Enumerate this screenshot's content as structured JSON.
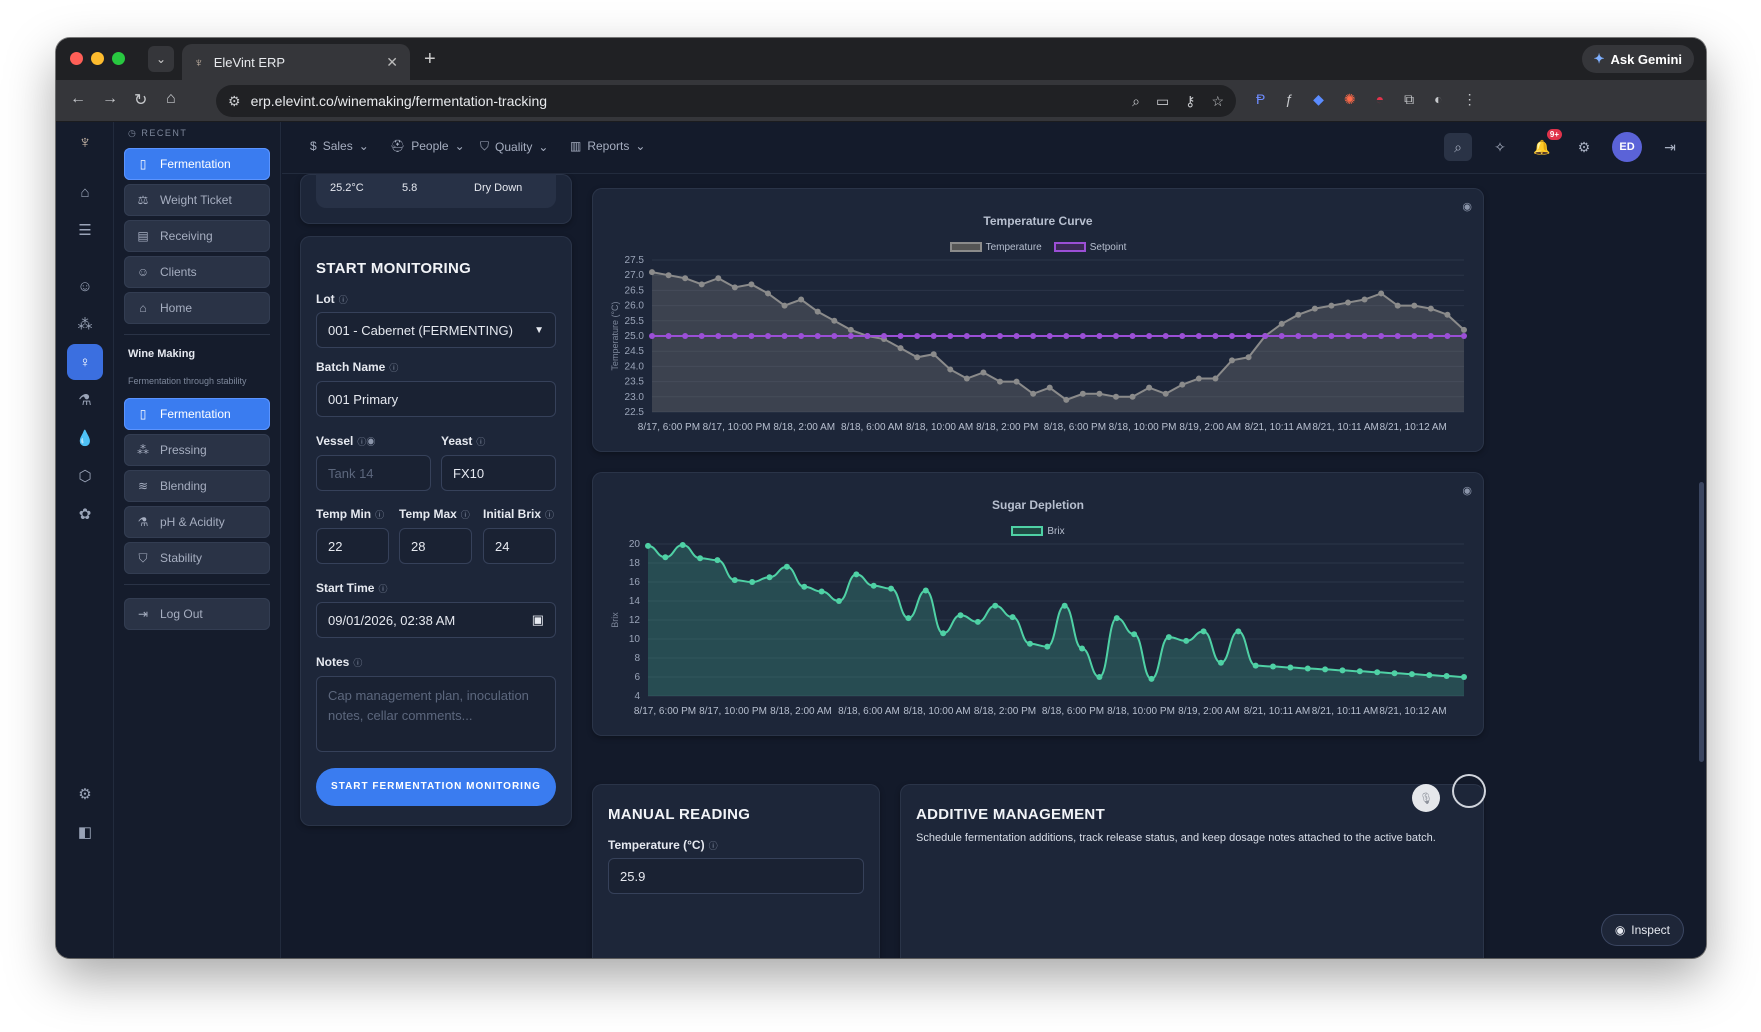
{
  "browser": {
    "tab_title": "EleVint ERP",
    "url": "erp.elevint.co/winemaking/fermentation-tracking",
    "gemini_label": "Ask Gemini"
  },
  "rail": {
    "icons": [
      "home-icon",
      "checklist-icon",
      "users-icon",
      "grape-icon",
      "wine-glass-icon",
      "flask-icon",
      "drop-icon",
      "box-icon",
      "cluster-icon"
    ],
    "bottom_icons": [
      "gear-icon",
      "panel-icon"
    ]
  },
  "sidebar": {
    "recent_label": "RECENT",
    "recent_items": [
      {
        "label": "Fermentation",
        "icon": "barrel-icon",
        "active": true
      },
      {
        "label": "Weight Ticket",
        "icon": "scale-icon",
        "active": false
      },
      {
        "label": "Receiving",
        "icon": "clipboard-icon",
        "active": false
      },
      {
        "label": "Clients",
        "icon": "users-icon",
        "active": false
      },
      {
        "label": "Home",
        "icon": "home-icon",
        "active": false
      }
    ],
    "section_title": "Wine Making",
    "section_subtitle": "Fermentation through stability",
    "section_items": [
      {
        "label": "Fermentation",
        "icon": "barrel-icon",
        "active": true
      },
      {
        "label": "Pressing",
        "icon": "grape-icon",
        "active": false
      },
      {
        "label": "Blending",
        "icon": "layers-icon",
        "active": false
      },
      {
        "label": "pH & Acidity",
        "icon": "flask-icon",
        "active": false
      },
      {
        "label": "Stability",
        "icon": "shield-icon",
        "active": false
      }
    ],
    "logout_label": "Log Out"
  },
  "topnav": {
    "items": [
      {
        "label": "Sales",
        "icon": "dollar-icon"
      },
      {
        "label": "People",
        "icon": "hat-icon"
      },
      {
        "label": "Quality",
        "icon": "shield-icon"
      },
      {
        "label": "Reports",
        "icon": "bar-chart-icon"
      }
    ],
    "notifications_badge": "9+",
    "avatar_initials": "ED"
  },
  "stat_strip": {
    "temp": "25.2°C",
    "ph": "5.8",
    "stage": "Dry Down"
  },
  "form": {
    "title": "START MONITORING",
    "lot_label": "Lot",
    "lot_value": "001 - Cabernet (FERMENTING)",
    "batch_label": "Batch Name",
    "batch_value": "001 Primary",
    "vessel_label": "Vessel",
    "vessel_placeholder": "Tank 14",
    "yeast_label": "Yeast",
    "yeast_value": "FX10",
    "temp_min_label": "Temp Min",
    "temp_min_value": "22",
    "temp_max_label": "Temp Max",
    "temp_max_value": "28",
    "brix_label": "Initial Brix",
    "brix_value": "24",
    "start_time_label": "Start Time",
    "start_time_value": "09/01/2026, 02:38 AM",
    "notes_label": "Notes",
    "notes_placeholder": "Cap management plan, inoculation notes, cellar comments...",
    "submit_label": "START FERMENTATION MONITORING"
  },
  "manual_reading": {
    "title": "MANUAL READING",
    "temp_label": "Temperature (°C)",
    "temp_value": "25.9"
  },
  "additive": {
    "title": "ADDITIVE MANAGEMENT",
    "description": "Schedule fermentation additions, track release status, and keep dosage notes attached to the active batch."
  },
  "inspect_label": "Inspect",
  "colors": {
    "accent": "#3a7cf0",
    "temperature_line": "#8b8b8b",
    "setpoint_line": "#9b4fd6",
    "brix_line": "#4fd1a5"
  },
  "chart_data": [
    {
      "type": "line",
      "title": "Temperature Curve",
      "ylabel": "Temperature (°C)",
      "ylim": [
        22.5,
        27.5
      ],
      "yticks": [
        22.5,
        23.0,
        23.5,
        24.0,
        24.5,
        25.0,
        25.5,
        26.0,
        26.5,
        27.0,
        27.5
      ],
      "xtick_labels": [
        "8/17, 6:00 PM",
        "8/17, 10:00 PM",
        "8/18, 2:00 AM",
        "8/18, 6:00 AM",
        "8/18, 10:00 AM",
        "8/18, 2:00 PM",
        "8/18, 6:00 PM",
        "8/18, 10:00 PM",
        "8/19, 2:00 AM",
        "8/21, 10:11 AM",
        "8/21, 10:11 AM",
        "8/21, 10:12 AM"
      ],
      "legend_placement": "top",
      "series": [
        {
          "name": "Temperature",
          "values": [
            27.1,
            27.0,
            26.9,
            26.7,
            26.9,
            26.6,
            26.7,
            26.4,
            26.0,
            26.2,
            25.8,
            25.5,
            25.2,
            25.0,
            24.9,
            24.6,
            24.3,
            24.4,
            23.9,
            23.6,
            23.8,
            23.5,
            23.5,
            23.1,
            23.3,
            22.9,
            23.1,
            23.1,
            23.0,
            23.0,
            23.3,
            23.1,
            23.4,
            23.6,
            23.6,
            24.2,
            24.3,
            25.0,
            25.4,
            25.7,
            25.9,
            26.0,
            26.1,
            26.2,
            26.4,
            26.0,
            26.0,
            25.9,
            25.7,
            25.2
          ]
        },
        {
          "name": "Setpoint",
          "values": [
            25,
            25,
            25,
            25,
            25,
            25,
            25,
            25,
            25,
            25,
            25,
            25,
            25,
            25,
            25,
            25,
            25,
            25,
            25,
            25,
            25,
            25,
            25,
            25,
            25,
            25,
            25,
            25,
            25,
            25,
            25,
            25,
            25,
            25,
            25,
            25,
            25,
            25,
            25,
            25,
            25,
            25,
            25,
            25,
            25,
            25,
            25,
            25,
            25,
            25
          ]
        }
      ]
    },
    {
      "type": "area",
      "title": "Sugar Depletion",
      "ylabel": "Brix",
      "ylim": [
        4,
        20
      ],
      "yticks": [
        4,
        6,
        8,
        10,
        12,
        14,
        16,
        18,
        20
      ],
      "xtick_labels": [
        "8/17, 6:00 PM",
        "8/17, 10:00 PM",
        "8/18, 2:00 AM",
        "8/18, 6:00 AM",
        "8/18, 10:00 AM",
        "8/18, 2:00 PM",
        "8/18, 6:00 PM",
        "8/18, 10:00 PM",
        "8/19, 2:00 AM",
        "8/21, 10:11 AM",
        "8/21, 10:11 AM",
        "8/21, 10:12 AM"
      ],
      "legend_placement": "top",
      "series": [
        {
          "name": "Brix",
          "values": [
            19.8,
            18.6,
            19.9,
            18.5,
            18.3,
            16.2,
            16.0,
            16.5,
            17.6,
            15.5,
            15.0,
            14.0,
            16.8,
            15.6,
            15.3,
            12.2,
            15.1,
            10.6,
            12.5,
            11.8,
            13.5,
            12.3,
            9.5,
            9.2,
            13.5,
            9.0,
            6.0,
            12.2,
            10.5,
            5.8,
            10.2,
            9.8,
            10.8,
            7.5,
            10.8,
            7.2,
            7.1,
            7.0,
            6.9,
            6.8,
            6.7,
            6.6,
            6.5,
            6.4,
            6.3,
            6.2,
            6.1,
            6.0
          ]
        }
      ]
    }
  ]
}
